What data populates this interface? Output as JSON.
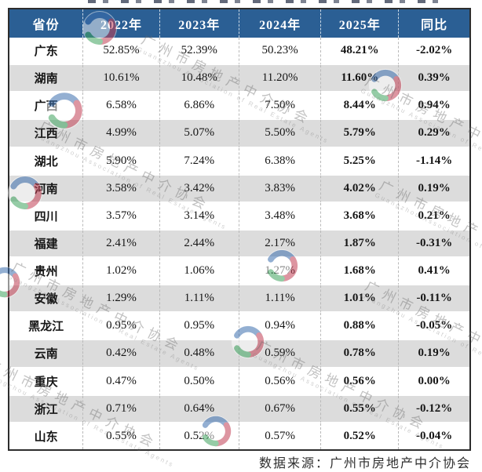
{
  "chart_data": {
    "type": "table",
    "columns": [
      "省份",
      "2022年",
      "2023年",
      "2024年",
      "2025年",
      "同比"
    ],
    "rows": [
      [
        "广东",
        "52.85%",
        "52.39%",
        "50.23%",
        "48.21%",
        "-2.02%"
      ],
      [
        "湖南",
        "10.61%",
        "10.48%",
        "11.20%",
        "11.60%",
        "0.39%"
      ],
      [
        "广西",
        "6.58%",
        "6.86%",
        "7.50%",
        "8.44%",
        "0.94%"
      ],
      [
        "江西",
        "4.99%",
        "5.07%",
        "5.50%",
        "5.79%",
        "0.29%"
      ],
      [
        "湖北",
        "5.90%",
        "7.24%",
        "6.38%",
        "5.25%",
        "-1.14%"
      ],
      [
        "河南",
        "3.58%",
        "3.42%",
        "3.83%",
        "4.02%",
        "0.19%"
      ],
      [
        "四川",
        "3.57%",
        "3.14%",
        "3.48%",
        "3.68%",
        "0.21%"
      ],
      [
        "福建",
        "2.41%",
        "2.44%",
        "2.17%",
        "1.87%",
        "-0.31%"
      ],
      [
        "贵州",
        "1.02%",
        "1.06%",
        "1.27%",
        "1.68%",
        "0.41%"
      ],
      [
        "安徽",
        "1.29%",
        "1.11%",
        "1.11%",
        "1.01%",
        "-0.11%"
      ],
      [
        "黑龙江",
        "0.95%",
        "0.95%",
        "0.94%",
        "0.88%",
        "-0.05%"
      ],
      [
        "云南",
        "0.42%",
        "0.48%",
        "0.59%",
        "0.78%",
        "0.19%"
      ],
      [
        "重庆",
        "0.47%",
        "0.50%",
        "0.56%",
        "0.56%",
        "0.00%"
      ],
      [
        "浙江",
        "0.71%",
        "0.64%",
        "0.67%",
        "0.55%",
        "-0.12%"
      ],
      [
        "山东",
        "0.55%",
        "0.52%",
        "0.57%",
        "0.52%",
        "-0.04%"
      ]
    ],
    "bold_columns": [
      0,
      4,
      5
    ],
    "column_widths_percent": [
      16.1,
      16.6,
      17.3,
      17.8,
      16.9,
      15.3
    ]
  },
  "footer": {
    "source": "数据来源：广州市房地产中介协会"
  },
  "watermark": {
    "text": "广州市房地产中介协会",
    "subtext": "Guangzhou Association of Real Estate Agents"
  },
  "colors": {
    "header_bg": "#2B5F94",
    "row_alt": "#DCDCDC",
    "logo_green": "#3FA45F",
    "logo_blue": "#3C6FAE",
    "logo_red": "#C24055"
  }
}
